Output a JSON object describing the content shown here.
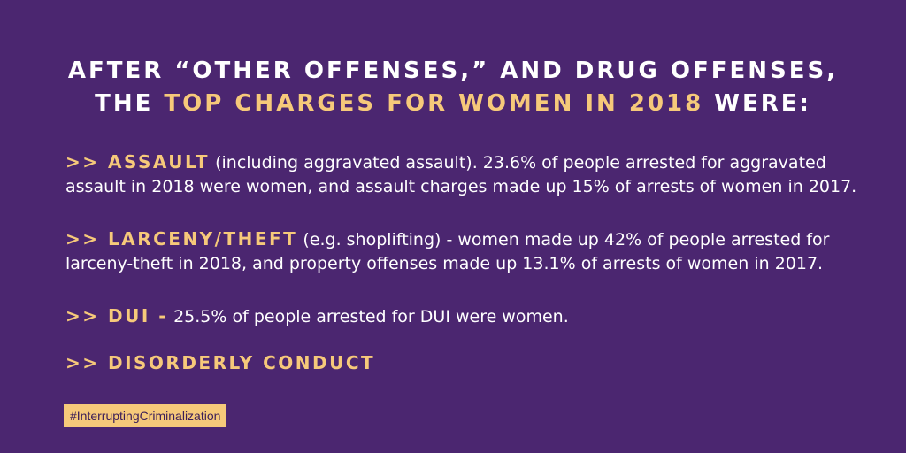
{
  "headline": {
    "line1": "After “other offenses,” and drug offenses,",
    "line2_prefix": "the",
    "line2_accent": "top charges for women in 2018",
    "line2_suffix": "were:"
  },
  "items": [
    {
      "label": ">> Assault",
      "text": "(including aggravated assault). 23.6% of people arrested for aggravated assault in 2018 were women, and assault charges made up 15% of arrests of women in 2017."
    },
    {
      "label": ">> Larceny/Theft",
      "text": "(e.g. shoplifting)  - women made up 42% of people arrested for larceny-theft in 2018, and property offenses made up 13.1% of arrests of women in 2017."
    },
    {
      "label": ">> DUI -",
      "text": "25.5% of people arrested for DUI were women."
    },
    {
      "label": ">> Disorderly Conduct",
      "text": ""
    }
  ],
  "hashtag": "#InterruptingCriminalization",
  "colors": {
    "background": "#4b2670",
    "accent": "#f6c97a",
    "text": "#ffffff"
  }
}
